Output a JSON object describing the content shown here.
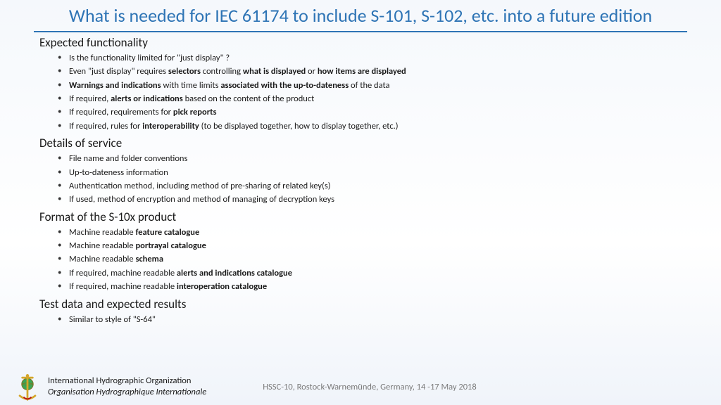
{
  "title": "What is needed for IEC 61174 to include S-101, S-102, etc. into a future edition",
  "colors": {
    "title": "#2e74b5",
    "rule": "#2e74b5",
    "text": "#1a1a1a",
    "footer_muted": "#7a7a7a",
    "background_top": "#f5f8fc",
    "background_bottom": "#f0f4fa"
  },
  "sections": [
    {
      "heading": "Expected functionality",
      "items": [
        "Is the functionality limited for \"just display\" ?",
        "Even \"just display\" requires <b>selectors</b> controlling <b>what is displayed</b> or <b>how items are displayed</b>",
        "<b>Warnings and indications</b> with time limits <b>associated with the up-to-dateness</b> of the data",
        "If required, <b>alerts or indications</b> based on the content of the product",
        "If required, requirements for <b>pick reports</b>",
        "If required, rules for <b>interoperability</b> (to be displayed together, how to display together, etc.)"
      ]
    },
    {
      "heading": "Details of service",
      "items": [
        "File name and folder conventions",
        "Up-to-dateness information",
        "Authentication method, including method of pre-sharing of related key(s)",
        "If used, method of encryption and method of managing of decryption keys"
      ]
    },
    {
      "heading": "Format of the S-10x product",
      "items": [
        "Machine readable <b>feature catalogue</b>",
        "Machine readable <b>portrayal catalogue</b>",
        "Machine readable <b>schema</b>",
        "If required, machine readable <b>alerts and indications catalogue</b>",
        "If required, machine readable <b>interoperation catalogue</b>"
      ]
    },
    {
      "heading": "Test data and expected results",
      "items": [
        "Similar to style of \"S-64\""
      ]
    }
  ],
  "footer": {
    "org_line1": "International Hydrographic Organization",
    "org_line2": "Organisation Hydrographique Internationale",
    "conference": "HSSC-10, Rostock-Warnemünde, Germany, 14 -17 May 2018"
  },
  "logo": {
    "anchor_color": "#d4a62a",
    "globe_color": "#3aa655",
    "outline": "#8a6d1f"
  }
}
